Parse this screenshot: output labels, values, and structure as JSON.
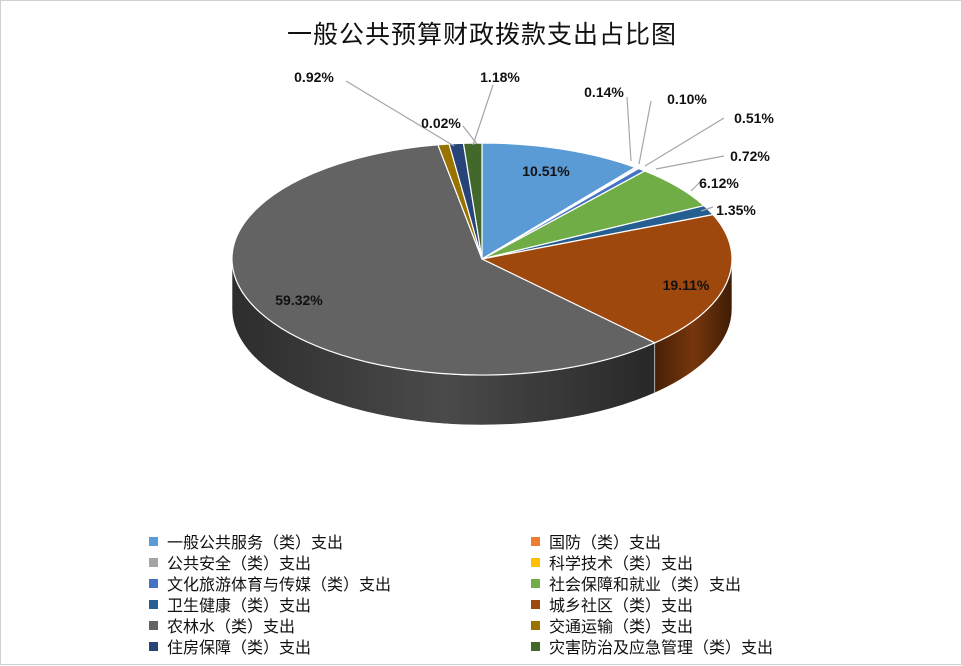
{
  "chart_data": {
    "type": "pie",
    "title": "一般公共预算财政拨款支出占比图",
    "series": [
      {
        "name": "一般公共服务（类）支出",
        "value": 10.51,
        "label": "10.51%",
        "color": "#5b9bd5"
      },
      {
        "name": "国防（类）支出",
        "value": 0.02,
        "label": "",
        "color": "#ed7d31"
      },
      {
        "name": "公共安全（类）支出",
        "value": 0.14,
        "label": "0.14%",
        "color": "#a5a5a5"
      },
      {
        "name": "科学技术（类）支出",
        "value": 0.1,
        "label": "0.10%",
        "color": "#ffc000"
      },
      {
        "name": "文化旅游体育与传媒（类）支出",
        "value": 0.51,
        "label": "0.51%",
        "color": "#4472c4"
      },
      {
        "name": "社会保障和就业（类）支出",
        "value": 6.12,
        "label": "6.12%",
        "color": "#70ad47"
      },
      {
        "name": "卫生健康（类）支出",
        "value": 1.35,
        "label": "1.35%",
        "color": "#255e91"
      },
      {
        "name": "城乡社区（类）支出",
        "value": 19.11,
        "label": "19.11%",
        "color": "#9e480e"
      },
      {
        "name": "农林水（类）支出",
        "value": 59.32,
        "label": "59.32%",
        "color": "#636363"
      },
      {
        "name": "交通运输（类）支出",
        "value": 0.72,
        "label": "0.72%",
        "color": "#997300"
      },
      {
        "name": "住房保障（类）支出",
        "value": 0.92,
        "label": "0.92%",
        "color": "#264478"
      },
      {
        "name": "灾害防治及应急管理（类）支出",
        "value": 1.18,
        "label": "1.18%",
        "color": "#43682b"
      }
    ],
    "extra_labels": [
      "0.02%"
    ],
    "legend_position": "bottom"
  }
}
